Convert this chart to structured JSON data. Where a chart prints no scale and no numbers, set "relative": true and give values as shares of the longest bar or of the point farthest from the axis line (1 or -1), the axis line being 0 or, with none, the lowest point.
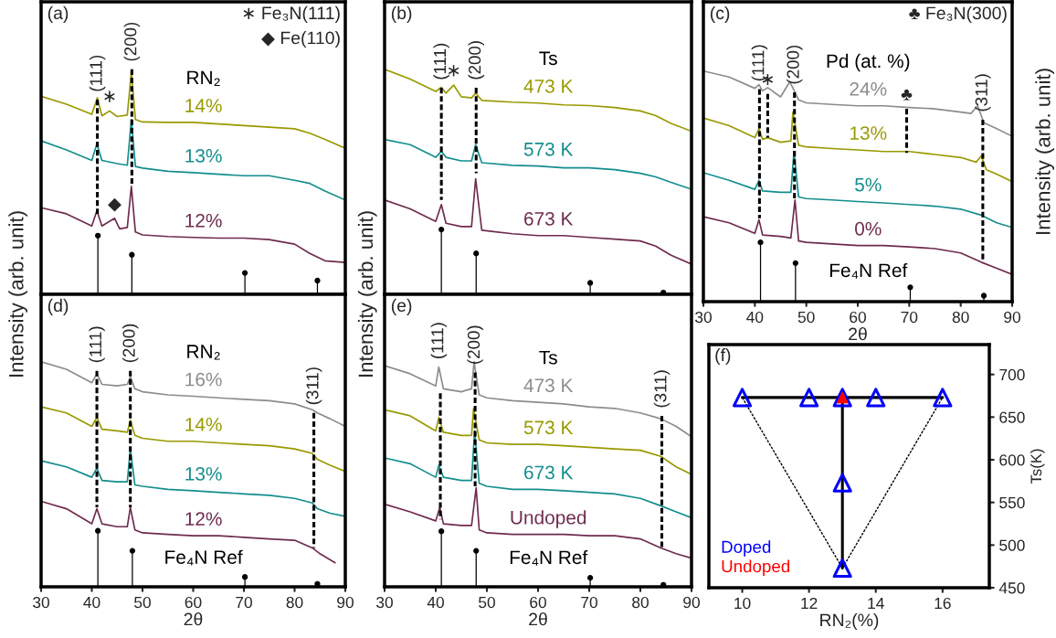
{
  "chart_data": [
    {
      "type": "line",
      "title": "(a)",
      "legend_title": "RN₂",
      "relative": true,
      "xlim": [
        30,
        90
      ],
      "xticks": [
        30,
        40,
        50,
        60,
        70,
        80,
        90
      ],
      "tick_labels": false,
      "legend": false,
      "annotations": [
        "∗ Fe₃N(111)",
        "◆ Fe(110)",
        {
          "text": "(111)",
          "x": 41.1,
          "y": 0.865
        },
        {
          "text": "(200)",
          "x": 47.9,
          "y": 1.0
        },
        {
          "text": "∗",
          "x": 43.5,
          "y": 0.815
        },
        {
          "text": "◆",
          "x": 44.5,
          "y": 0.338
        }
      ],
      "series": [
        {
          "name": "14%",
          "color": "#999900",
          "x": [
            30,
            35,
            40,
            41.1,
            42,
            43.5,
            45,
            47,
            47.8,
            48.6,
            50,
            55,
            60,
            65,
            70,
            75,
            80,
            83,
            86,
            90
          ],
          "values": [
            0.88,
            0.845,
            0.8,
            0.874,
            0.793,
            0.815,
            0.79,
            0.797,
            0.99,
            0.777,
            0.766,
            0.764,
            0.764,
            0.757,
            0.75,
            0.743,
            0.736,
            0.716,
            0.689,
            0.649
          ]
        },
        {
          "name": "13%",
          "color": "#138d8d",
          "x": [
            30,
            35,
            40,
            41,
            42,
            45,
            47,
            47.8,
            48.6,
            50,
            55,
            60,
            65,
            70,
            75,
            80,
            83,
            86,
            90
          ],
          "values": [
            0.682,
            0.642,
            0.595,
            0.669,
            0.595,
            0.581,
            0.574,
            0.777,
            0.568,
            0.561,
            0.547,
            0.541,
            0.534,
            0.527,
            0.527,
            0.507,
            0.493,
            0.459,
            0.419
          ]
        },
        {
          "name": "12%",
          "color": "#6e2b4e",
          "x": [
            30,
            35,
            40,
            41,
            42,
            44.5,
            45.5,
            47,
            47.8,
            48.6,
            50,
            55,
            60,
            65,
            70,
            75,
            80,
            83,
            86,
            90
          ],
          "values": [
            0.385,
            0.358,
            0.304,
            0.372,
            0.304,
            0.338,
            0.291,
            0.297,
            0.48,
            0.277,
            0.264,
            0.257,
            0.253,
            0.25,
            0.25,
            0.243,
            0.223,
            0.182,
            0.149,
            0.142
          ]
        },
        {
          "type": "line",
          "color": "#000000",
          "line_style": "dashed",
          "x": [
            41.1,
            41.1
          ],
          "values": [
            0.865,
            0.358
          ]
        },
        {
          "type": "line",
          "color": "#000000",
          "line_style": "dashed",
          "x": [
            47.9,
            47.9
          ],
          "values": [
            1.0,
            0.48
          ]
        },
        {
          "type": "lollipop",
          "color": "#000000",
          "x": [
            41.2,
            47.9,
            70.2,
            84.5
          ],
          "values": [
            0.261,
            0.176,
            0.095,
            0.061
          ]
        }
      ]
    },
    {
      "type": "line",
      "title": "(b)",
      "legend_title": "Ts",
      "relative": true,
      "xlim": [
        30,
        90
      ],
      "xticks": [
        30,
        40,
        50,
        60,
        70,
        80,
        90
      ],
      "tick_labels": false,
      "legend": false,
      "annotations": [
        {
          "text": "(111)",
          "x": 41.1,
          "y": 0.918
        },
        {
          "text": "(200)",
          "x": 47.9,
          "y": 0.918
        },
        {
          "text": "∗",
          "x": 43.5,
          "y": 0.93
        }
      ],
      "series": [
        {
          "name": "473 K",
          "color": "#999900",
          "x": [
            30,
            35,
            40,
            41.1,
            42,
            43.5,
            45,
            47,
            47.8,
            49,
            55,
            60,
            65,
            70,
            75,
            80,
            83,
            86,
            90
          ],
          "values": [
            1.0,
            0.957,
            0.902,
            0.92,
            0.894,
            0.93,
            0.878,
            0.873,
            0.894,
            0.862,
            0.854,
            0.85,
            0.842,
            0.839,
            0.83,
            0.815,
            0.794,
            0.76,
            0.725
          ]
        },
        {
          "name": "573 K",
          "color": "#138d8d",
          "x": [
            30,
            35,
            40,
            41.1,
            42,
            45,
            47,
            47.8,
            49,
            55,
            60,
            65,
            70,
            75,
            80,
            83,
            86,
            90
          ],
          "values": [
            0.688,
            0.665,
            0.609,
            0.636,
            0.609,
            0.593,
            0.593,
            0.665,
            0.585,
            0.573,
            0.57,
            0.562,
            0.562,
            0.554,
            0.538,
            0.522,
            0.498,
            0.467
          ]
        },
        {
          "name": "673 K",
          "color": "#6e2b4e",
          "x": [
            30,
            35,
            40,
            41.1,
            42,
            45,
            47,
            47.8,
            49,
            55,
            60,
            65,
            70,
            75,
            80,
            83,
            86,
            90
          ],
          "values": [
            0.419,
            0.38,
            0.324,
            0.399,
            0.316,
            0.301,
            0.301,
            0.514,
            0.285,
            0.269,
            0.261,
            0.261,
            0.253,
            0.245,
            0.237,
            0.214,
            0.174,
            0.134
          ]
        },
        {
          "type": "line",
          "color": "#000000",
          "line_style": "dashed",
          "x": [
            41.1,
            41.1
          ],
          "values": [
            0.918,
            0.419
          ]
        },
        {
          "type": "line",
          "color": "#000000",
          "line_style": "dashed",
          "x": [
            47.9,
            47.9
          ],
          "values": [
            0.918,
            0.538
          ]
        },
        {
          "type": "lollipop",
          "color": "#000000",
          "x": [
            41.1,
            47.9,
            70.2,
            84.5
          ],
          "values": [
            0.288,
            0.182,
            0.051,
            0.008
          ]
        }
      ]
    },
    {
      "type": "line",
      "title": "(c)",
      "legend_title": "Pd (at. %)",
      "xlabel": "2θ",
      "ylabel": "Intensity (arb. unit)",
      "relative": true,
      "xlim": [
        30,
        90
      ],
      "xticks": [
        30,
        40,
        50,
        60,
        70,
        80,
        90
      ],
      "tick_labels": "x",
      "legend": false,
      "annotations": [
        "♣ Fe₃N(300)",
        {
          "text": "(111)",
          "x": 40.9,
          "y": 0.921
        },
        {
          "text": "(200)",
          "x": 47.7,
          "y": 0.908
        },
        {
          "text": "(311)",
          "x": 84.3,
          "y": 0.789
        },
        {
          "text": "∗",
          "x": 42.5,
          "y": 0.901
        },
        {
          "text": "♣",
          "x": 69.5,
          "y": 0.836
        }
      ],
      "series": [
        {
          "name": "24%",
          "color": "#8c8c8c",
          "x": [
            30,
            35,
            40,
            40.8,
            41.5,
            42.5,
            45,
            46.8,
            48.5,
            50,
            55,
            60,
            65,
            70,
            75,
            80,
            82,
            83.3,
            84.5,
            87,
            90
          ],
          "values": [
            1.0,
            0.974,
            0.925,
            0.941,
            0.914,
            0.928,
            0.888,
            0.954,
            0.875,
            0.862,
            0.855,
            0.849,
            0.849,
            0.842,
            0.836,
            0.822,
            0.816,
            0.849,
            0.776,
            0.75,
            0.717
          ]
        },
        {
          "name": "13%",
          "color": "#999900",
          "x": [
            30,
            35,
            40,
            40.8,
            41.5,
            42.5,
            45,
            47,
            47.4,
            48.5,
            50,
            55,
            60,
            65,
            70,
            75,
            80,
            83,
            84,
            85,
            87,
            90
          ],
          "values": [
            0.796,
            0.763,
            0.711,
            0.75,
            0.704,
            0.711,
            0.691,
            0.697,
            0.822,
            0.678,
            0.671,
            0.664,
            0.658,
            0.651,
            0.651,
            0.638,
            0.625,
            0.605,
            0.632,
            0.572,
            0.553,
            0.52
          ]
        },
        {
          "name": "5%",
          "color": "#138d8d",
          "x": [
            30,
            35,
            40,
            40.8,
            41.5,
            45,
            47,
            47.6,
            48.5,
            50,
            55,
            60,
            65,
            70,
            75,
            80,
            84,
            87,
            90
          ],
          "values": [
            0.559,
            0.526,
            0.487,
            0.526,
            0.48,
            0.474,
            0.474,
            0.651,
            0.454,
            0.447,
            0.441,
            0.434,
            0.428,
            0.421,
            0.414,
            0.401,
            0.375,
            0.342,
            0.322
          ]
        },
        {
          "name": "0%",
          "color": "#6e2b4e",
          "x": [
            30,
            35,
            40,
            40.8,
            41.5,
            45,
            47,
            47.8,
            48.5,
            50,
            55,
            60,
            65,
            70,
            75,
            80,
            84,
            87,
            90
          ],
          "values": [
            0.368,
            0.342,
            0.296,
            0.355,
            0.289,
            0.283,
            0.276,
            0.441,
            0.263,
            0.257,
            0.25,
            0.243,
            0.243,
            0.237,
            0.23,
            0.211,
            0.171,
            0.145,
            0.118
          ]
        },
        {
          "type": "line",
          "color": "#000000",
          "line_style": "dashed",
          "x": [
            40.9,
            40.9
          ],
          "values": [
            0.921,
            0.362
          ]
        },
        {
          "type": "line",
          "color": "#000000",
          "line_style": "dashed",
          "x": [
            42.5,
            42.5
          ],
          "values": [
            0.901,
            0.711
          ]
        },
        {
          "type": "line",
          "color": "#000000",
          "line_style": "dashed",
          "x": [
            47.7,
            47.7
          ],
          "values": [
            0.908,
            0.441
          ]
        },
        {
          "type": "line",
          "color": "#000000",
          "line_style": "dashed",
          "x": [
            69.5,
            69.5
          ],
          "values": [
            0.836,
            0.645
          ]
        },
        {
          "type": "line",
          "color": "#000000",
          "line_style": "dashed",
          "x": [
            84.3,
            84.3
          ],
          "values": [
            0.789,
            0.171
          ]
        },
        {
          "type": "lollipop",
          "name": "Fe₄N Ref",
          "color": "#000000",
          "x": [
            41.1,
            47.9,
            70.2,
            84.5
          ],
          "values": [
            0.257,
            0.167,
            0.062,
            0.026
          ]
        }
      ]
    },
    {
      "type": "line",
      "title": "(d)",
      "legend_title": "RN₂",
      "xlabel": "2θ",
      "ylabel": "Intensity (arb. unit)",
      "relative": true,
      "xlim": [
        30,
        90
      ],
      "xticks": [
        30,
        40,
        50,
        60,
        70,
        80,
        90
      ],
      "tick_labels": "x",
      "legend": false,
      "annotations": [
        {
          "text": "(111)",
          "x": 41,
          "y": 0.96
        },
        {
          "text": "(200)",
          "x": 47.6,
          "y": 0.96
        },
        {
          "text": "(311)",
          "x": 83.8,
          "y": 0.773
        }
      ],
      "series": [
        {
          "name": "16%",
          "color": "#8c8c8c",
          "x": [
            30,
            35,
            40,
            41,
            42,
            45,
            47,
            47.6,
            48.5,
            50,
            55,
            60,
            65,
            70,
            75,
            80,
            83.5,
            84.5,
            87,
            90
          ],
          "values": [
            1.0,
            0.967,
            0.907,
            0.947,
            0.9,
            0.893,
            0.9,
            0.933,
            0.88,
            0.867,
            0.853,
            0.847,
            0.84,
            0.833,
            0.827,
            0.813,
            0.787,
            0.773,
            0.747,
            0.713
          ]
        },
        {
          "name": "14%",
          "color": "#999900",
          "x": [
            30,
            35,
            40,
            41,
            42,
            45,
            47,
            47.6,
            48.5,
            50,
            55,
            60,
            65,
            70,
            75,
            80,
            83.5,
            84.5,
            87,
            90
          ],
          "values": [
            0.8,
            0.773,
            0.713,
            0.753,
            0.7,
            0.693,
            0.687,
            0.74,
            0.673,
            0.66,
            0.647,
            0.647,
            0.64,
            0.633,
            0.627,
            0.613,
            0.593,
            0.567,
            0.54,
            0.513
          ]
        },
        {
          "name": "13%",
          "color": "#138d8d",
          "x": [
            30,
            35,
            40,
            41,
            42,
            45,
            47,
            47.6,
            48.5,
            50,
            55,
            60,
            65,
            70,
            75,
            80,
            83.5,
            84.5,
            87,
            90
          ],
          "values": [
            0.56,
            0.533,
            0.487,
            0.527,
            0.473,
            0.467,
            0.467,
            0.613,
            0.453,
            0.447,
            0.433,
            0.427,
            0.42,
            0.413,
            0.407,
            0.393,
            0.373,
            0.347,
            0.327,
            0.313
          ]
        },
        {
          "name": "12%",
          "color": "#6e2b4e",
          "x": [
            30,
            35,
            40,
            41,
            42,
            45,
            47,
            47.6,
            48.5,
            50,
            55,
            60,
            65,
            70,
            75,
            80,
            83.5,
            85,
            88
          ],
          "values": [
            0.38,
            0.347,
            0.28,
            0.347,
            0.28,
            0.267,
            0.267,
            0.353,
            0.253,
            0.24,
            0.233,
            0.227,
            0.227,
            0.22,
            0.213,
            0.207,
            0.173,
            0.147,
            0.107
          ]
        },
        {
          "type": "line",
          "color": "#000000",
          "line_style": "dashed",
          "x": [
            41,
            41
          ],
          "values": [
            0.96,
            0.353
          ]
        },
        {
          "type": "line",
          "color": "#000000",
          "line_style": "dashed",
          "x": [
            47.6,
            47.6
          ],
          "values": [
            0.96,
            0.353
          ]
        },
        {
          "type": "line",
          "color": "#000000",
          "line_style": "dashed",
          "x": [
            83.8,
            83.8
          ],
          "values": [
            0.773,
            0.173
          ]
        },
        {
          "type": "lollipop",
          "name": "Fe₄N Ref",
          "color": "#000000",
          "x": [
            41.2,
            48,
            70.2,
            84.5
          ],
          "values": [
            0.249,
            0.16,
            0.044,
            0.013
          ]
        }
      ]
    },
    {
      "type": "line",
      "title": "(e)",
      "legend_title": "Ts",
      "xlabel": "2θ",
      "ylabel": "Intensity (arb. unit)",
      "relative": true,
      "xlim": [
        30,
        90
      ],
      "xticks": [
        30,
        40,
        50,
        60,
        70,
        80,
        90
      ],
      "tick_labels": "x",
      "legend": false,
      "annotations": [
        {
          "text": "(111)",
          "x": 40.6,
          "y": 0.977
        },
        {
          "text": "(200)",
          "x": 47.7,
          "y": 0.953
        },
        {
          "text": "(311)",
          "x": 84.2,
          "y": 0.76
        }
      ],
      "series": [
        {
          "name": "473 K",
          "color": "#8c8c8c",
          "x": [
            30,
            35,
            40,
            40.6,
            41.5,
            45,
            47,
            47.5,
            48.5,
            50,
            55,
            60,
            65,
            70,
            75,
            80,
            84,
            87,
            90
          ],
          "values": [
            0.983,
            0.947,
            0.893,
            0.977,
            0.88,
            0.867,
            0.88,
            1.0,
            0.853,
            0.84,
            0.827,
            0.82,
            0.813,
            0.8,
            0.793,
            0.773,
            0.747,
            0.713,
            0.667
          ]
        },
        {
          "name": "573 K",
          "color": "#999900",
          "x": [
            30,
            35,
            40,
            40.6,
            41.5,
            45,
            47,
            47.4,
            48.5,
            50,
            55,
            60,
            65,
            70,
            75,
            80,
            84,
            87,
            90
          ],
          "values": [
            0.787,
            0.76,
            0.693,
            0.753,
            0.687,
            0.673,
            0.673,
            0.793,
            0.653,
            0.64,
            0.633,
            0.633,
            0.627,
            0.62,
            0.613,
            0.607,
            0.58,
            0.533,
            0.5
          ]
        },
        {
          "name": "673 K",
          "color": "#138d8d",
          "x": [
            30,
            35,
            40,
            40.6,
            41.5,
            45,
            47,
            47.6,
            48.5,
            50,
            55,
            60,
            65,
            70,
            75,
            80,
            84,
            87,
            90
          ],
          "values": [
            0.573,
            0.547,
            0.487,
            0.54,
            0.487,
            0.473,
            0.473,
            0.693,
            0.46,
            0.447,
            0.433,
            0.433,
            0.427,
            0.42,
            0.413,
            0.393,
            0.36,
            0.333,
            0.307
          ]
        },
        {
          "name": "Undoped",
          "color": "#6e2b4e",
          "x": [
            30,
            35,
            40,
            40.8,
            41.5,
            45,
            47,
            47.9,
            48.5,
            50,
            55,
            60,
            65,
            70,
            75,
            80,
            84,
            87,
            90
          ],
          "values": [
            0.367,
            0.333,
            0.293,
            0.353,
            0.28,
            0.273,
            0.273,
            0.44,
            0.253,
            0.24,
            0.233,
            0.233,
            0.233,
            0.227,
            0.227,
            0.213,
            0.173,
            0.147,
            0.127
          ]
        },
        {
          "type": "line",
          "color": "#000000",
          "line_style": "dashed",
          "x": [
            40.9,
            40.9
          ],
          "values": [
            0.86,
            0.3
          ]
        },
        {
          "type": "line",
          "color": "#000000",
          "line_style": "dashed",
          "x": [
            47.7,
            47.7
          ],
          "values": [
            0.953,
            0.447
          ]
        },
        {
          "type": "line",
          "color": "#000000",
          "line_style": "dashed",
          "x": [
            84.2,
            84.2
          ],
          "values": [
            0.76,
            0.167
          ]
        },
        {
          "type": "lollipop",
          "name": "Fe₄N Ref",
          "color": "#000000",
          "x": [
            41.1,
            47.9,
            70.2,
            84.5
          ],
          "values": [
            0.247,
            0.16,
            0.04,
            0.009
          ]
        }
      ]
    },
    {
      "type": "scatter",
      "title": "(f)",
      "xlabel": "RN₂(%)",
      "ylabel": "Ts(K)",
      "xlim": [
        9,
        17.4
      ],
      "xticks": [
        10,
        12,
        14,
        16
      ],
      "ylim": [
        450,
        735
      ],
      "yticks": [
        450,
        500,
        550,
        600,
        650,
        700
      ],
      "legend": "bottom left",
      "marker": "triangle",
      "series": [
        {
          "name": "Doped",
          "color": "#0000ff",
          "x": [
            10,
            12,
            13,
            14,
            16,
            13,
            13
          ],
          "values": [
            673,
            673,
            673,
            673,
            673,
            573,
            473
          ]
        },
        {
          "name": "Undoped",
          "color": "#ff0000",
          "x": [
            13
          ],
          "values": [
            673
          ]
        },
        {
          "type": "line",
          "color": "#000000",
          "line_style": "solid",
          "marker": "none",
          "x": [
            10,
            16
          ],
          "values": [
            673,
            673
          ]
        },
        {
          "type": "line",
          "color": "#000000",
          "line_style": "solid",
          "marker": "none",
          "x": [
            13,
            13
          ],
          "values": [
            673,
            473
          ]
        },
        {
          "type": "line",
          "color": "#000000",
          "line_style": "dashed",
          "marker": "none",
          "x": [
            10,
            13,
            16
          ],
          "values": [
            673,
            473,
            673
          ]
        }
      ]
    }
  ]
}
